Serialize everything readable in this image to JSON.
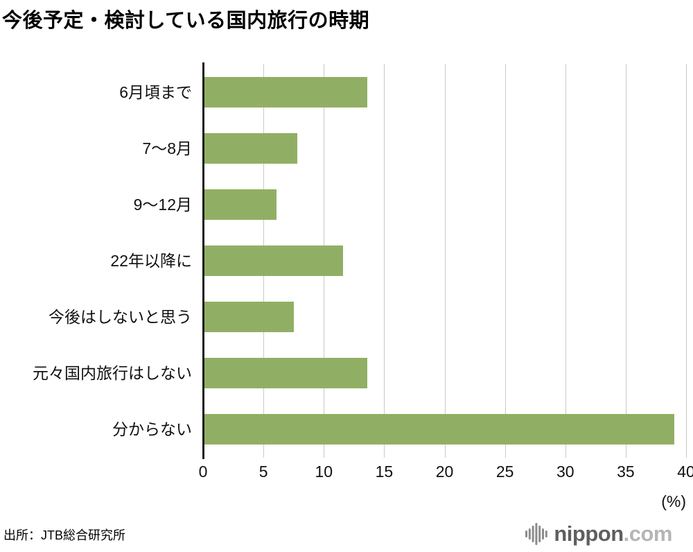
{
  "title": "今後予定・検討している国内旅行の時期",
  "source": "出所：JTB総合研究所",
  "axis_unit": "(%)",
  "logo": {
    "name": "nippon",
    "suffix": ".com"
  },
  "chart_data": {
    "type": "bar",
    "orientation": "horizontal",
    "title": "今後予定・検討している国内旅行の時期",
    "categories": [
      "6月頃まで",
      "7～8月",
      "9～12月",
      "22年以降に",
      "今後はしないと思う",
      "元々国内旅行はしない",
      "分からない"
    ],
    "values": [
      13.6,
      7.8,
      6.1,
      11.6,
      7.5,
      13.6,
      39.0
    ],
    "xlabel": "(%)",
    "xlim": [
      0,
      40
    ],
    "xticks": [
      0,
      5,
      10,
      15,
      20,
      25,
      30,
      35,
      40
    ],
    "grid": true,
    "legend": "none",
    "bar_color": "#91af64",
    "gridline_color": "#c9c9c9",
    "axis_color": "#1a1a1a"
  }
}
